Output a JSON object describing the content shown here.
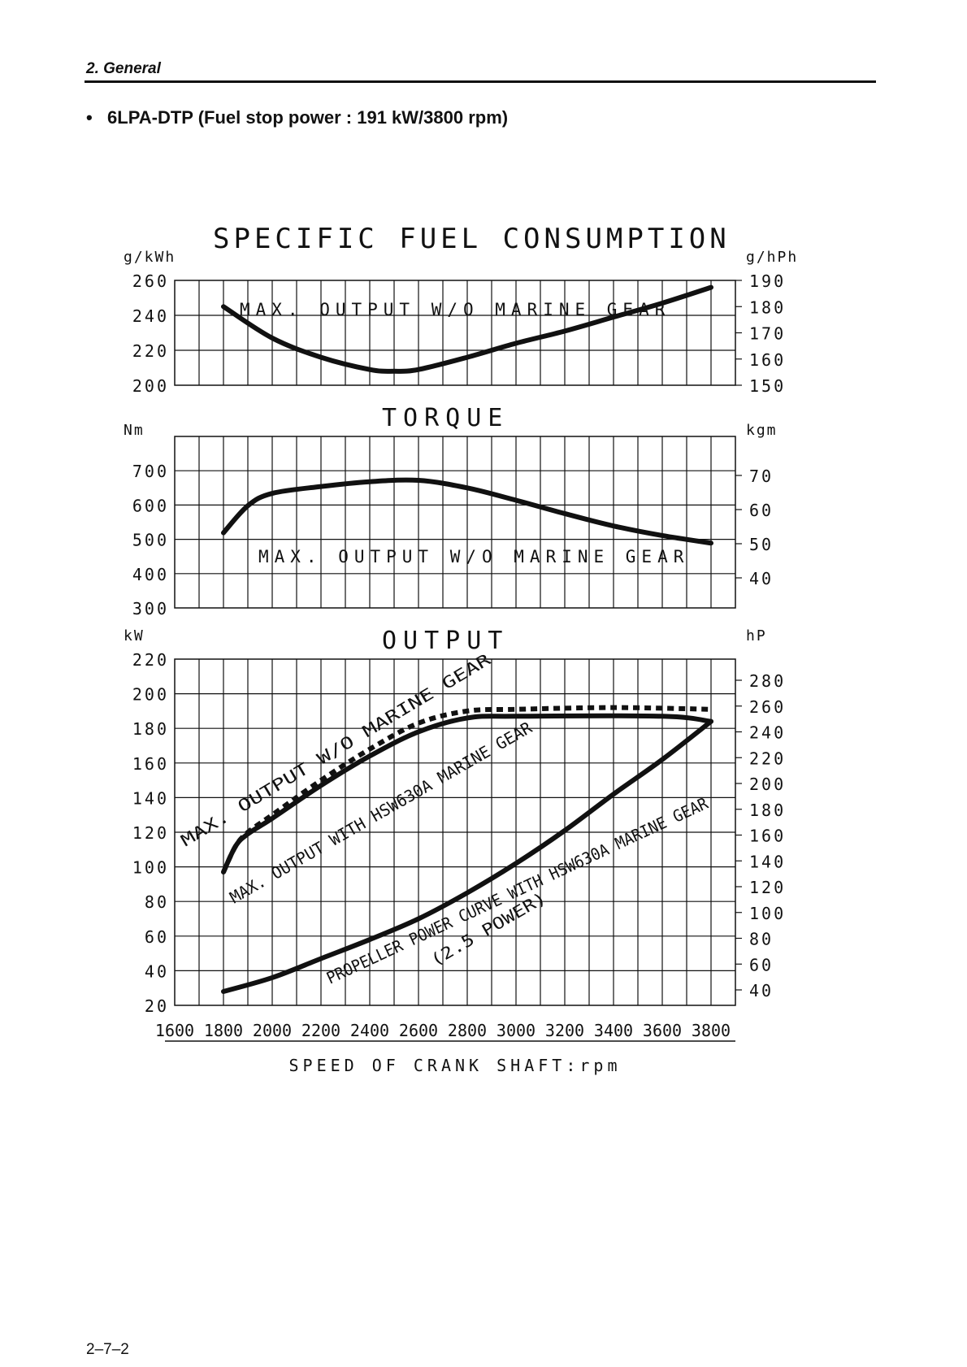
{
  "header": {
    "section": "2.  General",
    "bullet_symbol": "•",
    "title": "6LPA-DTP (Fuel stop power : 191 kW/3800 rpm)",
    "page_number": "2–7–2"
  },
  "chart_data": [
    {
      "type": "line",
      "title": "SPECIFIC FUEL CONSUMPTION",
      "ylabel": "g/kWh",
      "ylabel_right": "g/hPh",
      "ylim": [
        200,
        260
      ],
      "yticks": [
        "200",
        "220",
        "240",
        "260"
      ],
      "yticks_right": [
        "150",
        "160",
        "170",
        "180",
        "190"
      ],
      "series": [
        {
          "name": "MAX. OUTPUT W/O MARINE GEAR",
          "x": [
            1800,
            2000,
            2200,
            2400,
            2500,
            2600,
            2800,
            3000,
            3200,
            3400,
            3600,
            3800
          ],
          "y": [
            245,
            227,
            216,
            209,
            208,
            209,
            216,
            224,
            231,
            239,
            247,
            256
          ]
        }
      ]
    },
    {
      "type": "line",
      "title": "TORQUE",
      "ylabel": "Nm",
      "ylabel_right": "kgm",
      "ylim": [
        300,
        800
      ],
      "yticks": [
        "300",
        "400",
        "500",
        "600",
        "700"
      ],
      "yticks_right": [
        "40",
        "50",
        "60",
        "70"
      ],
      "series": [
        {
          "name": "MAX. OUTPUT W/O MARINE GEAR",
          "x": [
            1800,
            1900,
            2000,
            2200,
            2400,
            2600,
            2800,
            3000,
            3200,
            3400,
            3600,
            3800
          ],
          "y": [
            519,
            598,
            634,
            654,
            668,
            672,
            650,
            614,
            575,
            539,
            511,
            489
          ]
        }
      ]
    },
    {
      "type": "line",
      "title": "OUTPUT",
      "ylabel": "kW",
      "ylabel_right": "hP",
      "ylim": [
        20,
        220
      ],
      "yticks": [
        "20",
        "40",
        "60",
        "80",
        "100",
        "120",
        "140",
        "160",
        "180",
        "200",
        "220"
      ],
      "yticks_right": [
        "40",
        "60",
        "80",
        "100",
        "120",
        "140",
        "160",
        "180",
        "200",
        "220",
        "240",
        "260",
        "280"
      ],
      "xlabel": "SPEED OF CRANK SHAFT:rpm",
      "xlim": [
        1600,
        3900
      ],
      "xticks": [
        "1600",
        "1800",
        "2000",
        "2200",
        "2400",
        "2600",
        "2800",
        "3000",
        "3200",
        "3400",
        "3600",
        "3800"
      ],
      "series": [
        {
          "name": "MAX. OUTPUT W/O MARINE GEAR",
          "style": "dashed",
          "x": [
            1800,
            1850,
            1900,
            2000,
            2200,
            2400,
            2600,
            2800,
            3000,
            3400,
            3800
          ],
          "y": [
            97,
            112,
            120,
            130,
            150,
            168,
            183,
            190,
            191,
            192,
            191
          ]
        },
        {
          "name": "MAX. OUTPUT WITH HSW630A MARINE GEAR",
          "style": "solid",
          "x": [
            1800,
            1850,
            1900,
            2000,
            2200,
            2400,
            2600,
            2800,
            3000,
            3600,
            3800
          ],
          "y": [
            97,
            112,
            119,
            128,
            147,
            164,
            178,
            186,
            187,
            187,
            184
          ]
        },
        {
          "name": "PROPELLER POWER CURVE WITH HSW630A MARINE GEAR",
          "sub": "(2.5 POWER)",
          "style": "solid",
          "x": [
            1800,
            2000,
            2200,
            2400,
            2600,
            2800,
            3000,
            3200,
            3400,
            3600,
            3800
          ],
          "y": [
            28,
            36,
            47,
            58,
            70,
            85,
            102,
            121,
            142,
            162,
            184
          ]
        }
      ]
    }
  ]
}
